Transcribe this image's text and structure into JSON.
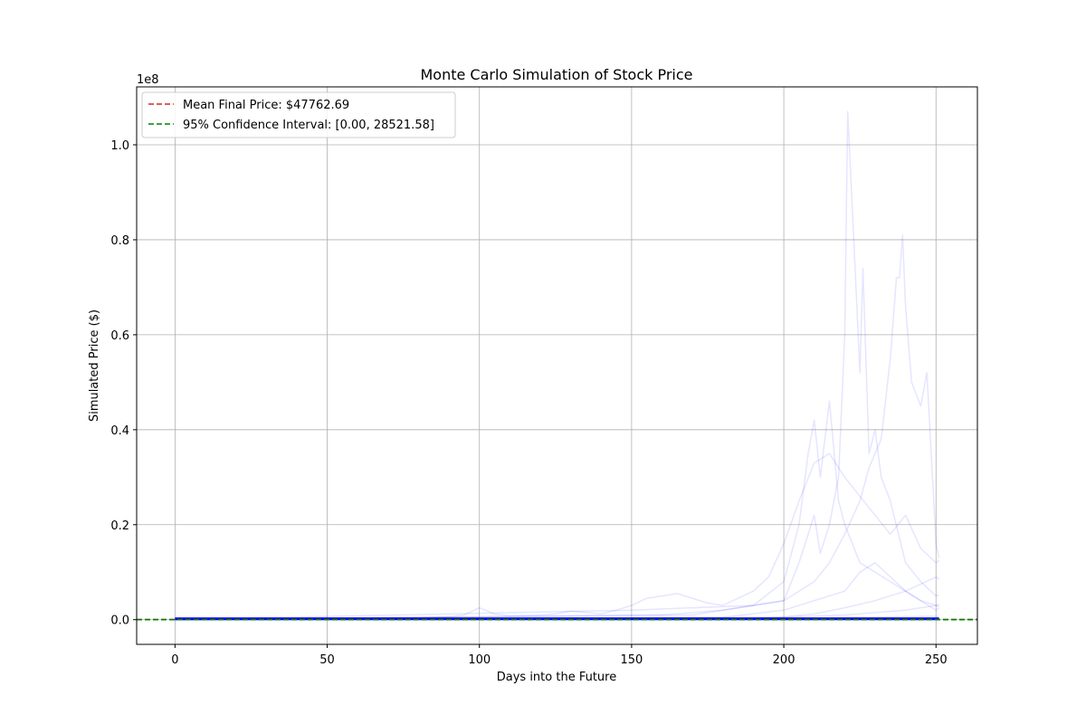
{
  "chart_data": {
    "type": "line",
    "title": "Monte Carlo Simulation of Stock Price",
    "xlabel": "Days into the Future",
    "ylabel": "Simulated Price ($)",
    "y_scale_label": "1e8",
    "xlim": [
      -12.6,
      263.6
    ],
    "ylim": [
      -5200000,
      112200000
    ],
    "y_scale": 100000000,
    "x_ticks": [
      0,
      50,
      100,
      150,
      200,
      250
    ],
    "y_ticks": [
      0,
      20000000,
      40000000,
      60000000,
      80000000,
      100000000
    ],
    "y_tick_labels": [
      "0.0",
      "0.2",
      "0.4",
      "0.6",
      "0.8",
      "1.0"
    ],
    "grid": true,
    "legend_position": "top-left",
    "reference_lines": [
      {
        "name": "Mean Final Price: $47762.69",
        "y": 47762.69,
        "color": "#d62728",
        "dash": true
      },
      {
        "name": "95% Confidence Interval: [0.00, 28521.58]",
        "y": 0.0,
        "color": "#008000",
        "dash": true
      },
      {
        "name": "",
        "y": 28521.58,
        "color": "#008000",
        "dash": true
      }
    ],
    "series": [
      {
        "color": "#0000ff",
        "x": [
          0,
          80,
          90,
          95,
          100,
          105,
          110,
          115,
          120,
          125,
          130,
          135,
          140,
          145,
          150,
          155,
          160,
          165,
          170,
          175,
          180,
          185,
          190,
          195,
          200,
          205,
          210,
          215,
          220,
          225,
          230,
          235,
          240,
          245,
          250,
          251
        ],
        "y": [
          100,
          400000,
          600000,
          1000000,
          2500000,
          1200000,
          800000,
          900000,
          1000000,
          1200000,
          1800000,
          1500000,
          1200000,
          2000000,
          3000000,
          4500000,
          5000000,
          5500000,
          4500000,
          3500000,
          3000000,
          4500000,
          6000000,
          9000000,
          16000000,
          25000000,
          33000000,
          35000000,
          30000000,
          26000000,
          22000000,
          18000000,
          22000000,
          15000000,
          12000000,
          12500000
        ]
      },
      {
        "color": "#0000ff",
        "x": [
          0,
          150,
          170,
          190,
          200,
          205,
          208,
          210,
          212,
          215,
          218,
          220,
          221,
          223,
          225,
          226,
          228,
          230,
          232,
          235,
          240,
          245,
          250,
          251
        ],
        "y": [
          100,
          2000000,
          2500000,
          3000000,
          4000000,
          12000000,
          18000000,
          22000000,
          14000000,
          20000000,
          30000000,
          60000000,
          107000000,
          80000000,
          52000000,
          74000000,
          35000000,
          40000000,
          30000000,
          25000000,
          12000000,
          8000000,
          5000000,
          5200000
        ]
      },
      {
        "color": "#0000ff",
        "x": [
          0,
          160,
          180,
          200,
          210,
          215,
          220,
          225,
          228,
          232,
          235,
          237,
          238,
          239,
          240,
          242,
          245,
          247,
          250,
          251
        ],
        "y": [
          100,
          1000000,
          2000000,
          4000000,
          8000000,
          12000000,
          18000000,
          25000000,
          32000000,
          38000000,
          55000000,
          72000000,
          72000000,
          81000000,
          66000000,
          50000000,
          45000000,
          52000000,
          16000000,
          13000000
        ]
      },
      {
        "color": "#0000ff",
        "x": [
          0,
          170,
          190,
          200,
          205,
          208,
          210,
          212,
          215,
          218,
          220,
          225,
          230,
          235,
          240,
          245,
          250,
          251
        ],
        "y": [
          100,
          1000000,
          3000000,
          8000000,
          20000000,
          35000000,
          42000000,
          30000000,
          46000000,
          25000000,
          20000000,
          12000000,
          10000000,
          8000000,
          6000000,
          4000000,
          2000000,
          2500000
        ]
      },
      {
        "color": "#0000ff",
        "x": [
          0,
          180,
          200,
          210,
          220,
          225,
          230,
          235,
          240,
          245,
          250,
          251
        ],
        "y": [
          100,
          500000,
          2000000,
          4000000,
          6000000,
          10000000,
          12000000,
          9000000,
          6000000,
          4000000,
          3000000,
          3200000
        ]
      },
      {
        "color": "#0000ff",
        "x": [
          0,
          190,
          200,
          210,
          220,
          230,
          240,
          250,
          251
        ],
        "y": [
          100,
          300000,
          600000,
          1200000,
          2500000,
          4000000,
          6000000,
          9000000,
          8500000
        ]
      },
      {
        "color": "#0000ff",
        "x": [
          0,
          200,
          220,
          240,
          250,
          251
        ],
        "y": [
          100,
          500000,
          1000000,
          2000000,
          3000000,
          2800000
        ]
      },
      {
        "color": "#0000ff",
        "x": [
          0,
          200,
          225,
          250,
          251
        ],
        "y": [
          100,
          200000,
          500000,
          700000,
          600000
        ]
      }
    ],
    "baseline_series_note": ""
  }
}
